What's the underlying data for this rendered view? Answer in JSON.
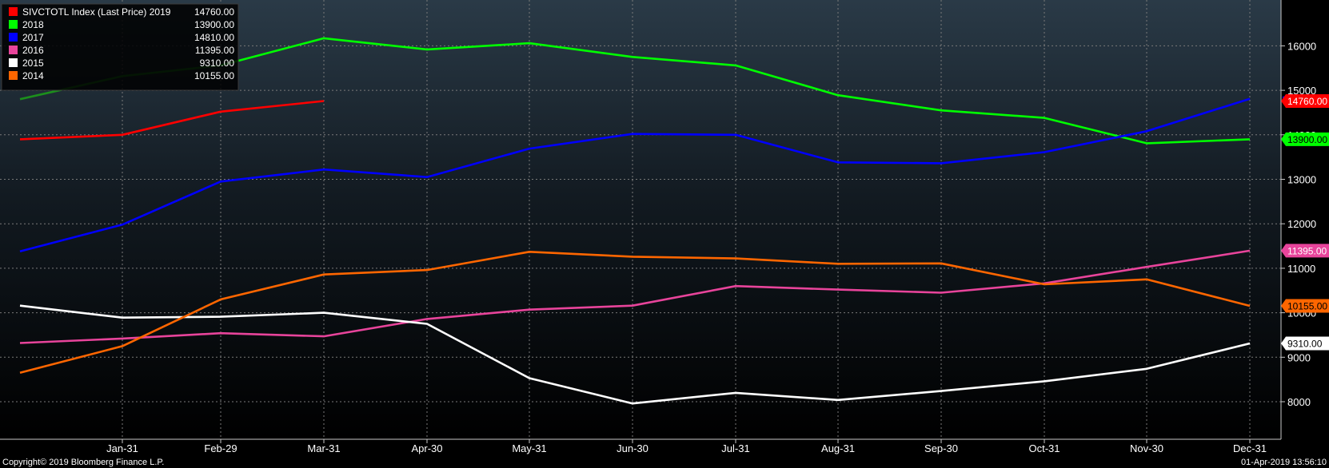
{
  "chart_data": {
    "type": "line",
    "legend": {
      "placement": "top-left",
      "entries": [
        {
          "label": "SIVCTOTL Index (Last Price) 2019",
          "value": "14760.00",
          "color": "#ff0000"
        },
        {
          "label": "2018",
          "value": "13900.00",
          "color": "#00ff00"
        },
        {
          "label": "2017",
          "value": "14810.00",
          "color": "#0000ff"
        },
        {
          "label": "2016",
          "value": "11395.00",
          "color": "#e8449b"
        },
        {
          "label": "2015",
          "value": "9310.00",
          "color": "#ffffff"
        },
        {
          "label": "2014",
          "value": "10155.00",
          "color": "#ff6600"
        }
      ]
    },
    "x_ticks": [
      "Jan-31",
      "Feb-29",
      "Mar-31",
      "Apr-30",
      "May-31",
      "Jun-30",
      "Jul-31",
      "Aug-31",
      "Sep-30",
      "Oct-31",
      "Nov-30",
      "Dec-31"
    ],
    "y_ticks": [
      8000,
      9000,
      10000,
      11000,
      12000,
      13000,
      14000,
      15000,
      16000
    ],
    "ylim": [
      7100,
      17000
    ],
    "grid": true,
    "series": [
      {
        "name": "2019",
        "color": "#ff0000",
        "values": [
          13900,
          14000,
          14520,
          14760
        ]
      },
      {
        "name": "2018",
        "color": "#00ff00",
        "values": [
          14800,
          15320,
          15560,
          16170,
          15920,
          16060,
          15750,
          15560,
          14890,
          14550,
          14380,
          13810,
          13900
        ]
      },
      {
        "name": "2017",
        "color": "#0000ff",
        "values": [
          11380,
          11980,
          12950,
          13220,
          13050,
          13690,
          14020,
          14000,
          13380,
          13360,
          13610,
          14080,
          14810
        ]
      },
      {
        "name": "2016",
        "color": "#e8449b",
        "values": [
          9320,
          9420,
          9540,
          9470,
          9860,
          10070,
          10160,
          10600,
          10520,
          10450,
          10660,
          11030,
          11395
        ]
      },
      {
        "name": "2015",
        "color": "#ffffff",
        "values": [
          10160,
          9890,
          9910,
          10000,
          9750,
          8530,
          7960,
          8200,
          8040,
          8240,
          8460,
          8740,
          9310
        ]
      },
      {
        "name": "2014",
        "color": "#ff6600",
        "values": [
          8650,
          9250,
          10300,
          10860,
          10960,
          11370,
          11260,
          11220,
          11100,
          11110,
          10640,
          10750,
          10155
        ]
      }
    ],
    "last_value_tags": [
      {
        "label": "14760.00",
        "value": 14760,
        "bg": "#ff0000",
        "fg": "#ffffff"
      },
      {
        "label": "13900.00",
        "value": 13900,
        "bg": "#00ff00",
        "fg": "#000000"
      },
      {
        "label": "11395.00",
        "value": 11395,
        "bg": "#e8449b",
        "fg": "#ffffff"
      },
      {
        "label": "10155.00",
        "value": 10155,
        "bg": "#ff6600",
        "fg": "#000000"
      },
      {
        "label": "9310.00",
        "value": 9310,
        "bg": "#ffffff",
        "fg": "#000000"
      }
    ],
    "hidden_last_marker": {
      "value": 14810,
      "color": "#0000ff"
    }
  },
  "footer": {
    "copyright": "Copyright© 2019 Bloomberg Finance L.P.",
    "timestamp": "01-Apr-2019 13:56:10"
  }
}
